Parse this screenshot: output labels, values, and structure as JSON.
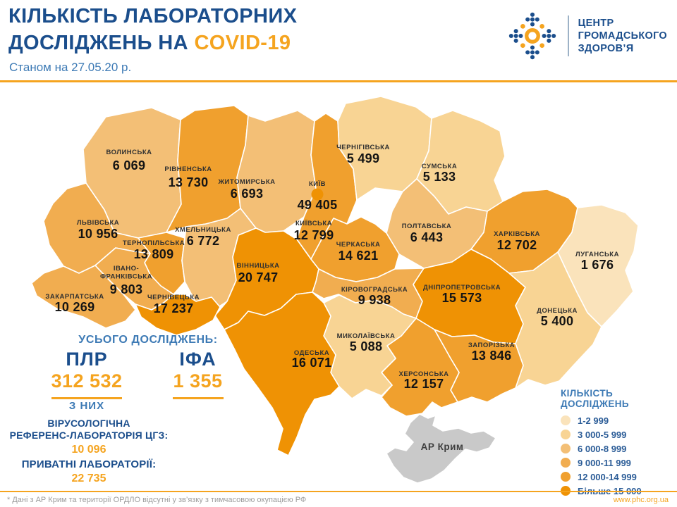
{
  "header": {
    "title_line1": "КІЛЬКІСТЬ ЛАБОРАТОРНИХ",
    "title_line2_prefix": "ДОСЛІДЖЕНЬ НА ",
    "title_highlight": "COVID-19",
    "subtitle": "Станом на 27.05.20 р.",
    "logo_lines": [
      "ЦЕНТР",
      "ГРОМАДСЬКОГО",
      "ЗДОРОВ’Я"
    ]
  },
  "totals": {
    "heading": "УСЬОГО ДОСЛІДЖЕНЬ:",
    "pcr_label": "ПЛР",
    "pcr_value": "312 532",
    "elisa_label": "ІФА",
    "elisa_value": "1 355",
    "of_them": "З НИХ",
    "ref_lab_line1": "ВІРУСОЛОГІЧНА",
    "ref_lab_line2": "РЕФЕРЕНС-ЛАБОРАТОРІЯ ЦГЗ:",
    "ref_lab_value": "10 096",
    "private_labs_label": "ПРИВАТНІ ЛАБОРАТОРІЇ:",
    "private_labs_value": "22 735"
  },
  "legend": {
    "title": "КІЛЬКІСТЬ ДОСЛІДЖЕНЬ",
    "items": [
      {
        "label": "1-2 999",
        "color": "#fae3bb"
      },
      {
        "label": "3 000-5 999",
        "color": "#f8d494"
      },
      {
        "label": "6 000-8 999",
        "color": "#f3bf76"
      },
      {
        "label": "9 000-11 999",
        "color": "#f1ad50"
      },
      {
        "label": "12 000-14 999",
        "color": "#f0a02e"
      },
      {
        "label": "Більше 15 000",
        "color": "#ef9204"
      }
    ]
  },
  "map": {
    "regions": [
      {
        "id": "volynska",
        "name": "ВОЛИНСЬКА",
        "value": "6 069",
        "bucket": 3
      },
      {
        "id": "rivnenska",
        "name": "РІВНЕНСЬКА",
        "value": "13 730",
        "bucket": 5
      },
      {
        "id": "zhytomyrska",
        "name": "ЖИТОМИРСЬКА",
        "value": "6 693",
        "bucket": 3
      },
      {
        "id": "kyiv-city",
        "name": "КИЇВ",
        "value": "49 405",
        "bucket": 6
      },
      {
        "id": "kyivska",
        "name": "КИЇВСЬКА",
        "value": "12 799",
        "bucket": 5
      },
      {
        "id": "chernihivska",
        "name": "ЧЕРНІГІВСЬКА",
        "value": "5 499",
        "bucket": 2
      },
      {
        "id": "sumska",
        "name": "СУМСЬКА",
        "value": "5 133",
        "bucket": 2
      },
      {
        "id": "poltavska",
        "name": "ПОЛТАВСЬКА",
        "value": "6 443",
        "bucket": 3
      },
      {
        "id": "kharkivska",
        "name": "ХАРКІВСЬКА",
        "value": "12 702",
        "bucket": 5
      },
      {
        "id": "luhanska",
        "name": "ЛУГАНСЬКА",
        "value": "1 676",
        "bucket": 1
      },
      {
        "id": "lvivska",
        "name": "ЛЬВІВСЬКА",
        "value": "10 956",
        "bucket": 4
      },
      {
        "id": "ternopilska",
        "name": "ТЕРНОПІЛЬСЬКА",
        "value": "13 809",
        "bucket": 5
      },
      {
        "id": "khmelnytska",
        "name": "ХМЕЛЬНИЦЬКА",
        "value": "6 772",
        "bucket": 3
      },
      {
        "id": "vinnytska",
        "name": "ВІННИЦЬКА",
        "value": "20 747",
        "bucket": 6
      },
      {
        "id": "cherkaska",
        "name": "ЧЕРКАСЬКА",
        "value": "14 621",
        "bucket": 5
      },
      {
        "id": "kirovohradska",
        "name": "КІРОВОГРАДСЬКА",
        "value": "9 938",
        "bucket": 4
      },
      {
        "id": "dnipropetrovska",
        "name": "ДНІПРОПЕТРОВСЬКА",
        "value": "15 573",
        "bucket": 6
      },
      {
        "id": "donetska",
        "name": "ДОНЕЦЬКА",
        "value": "5 400",
        "bucket": 2
      },
      {
        "id": "zaporizka",
        "name": "ЗАПОРІЗЬКА",
        "value": "13 846",
        "bucket": 5
      },
      {
        "id": "khersonska",
        "name": "ХЕРСОНСЬКА",
        "value": "12 157",
        "bucket": 5
      },
      {
        "id": "mykolaivska",
        "name": "МИКОЛАЇВСЬКА",
        "value": "5 088",
        "bucket": 2
      },
      {
        "id": "odeska",
        "name": "ОДЕСЬКА",
        "value": "16 071",
        "bucket": 6
      },
      {
        "id": "ivano-frankivska",
        "name": "ІВАНО-ФРАНКІВСЬКА",
        "value": "9 803",
        "bucket": 4
      },
      {
        "id": "zakarpatska",
        "name": "ЗАКАРПАТСЬКА",
        "value": "10 269",
        "bucket": 4
      },
      {
        "id": "chernivetska",
        "name": "ЧЕРНІВЕЦЬКА",
        "value": "17 237",
        "bucket": 6
      }
    ],
    "crimea": {
      "name": "АР Крим",
      "color": "#c9c9c9"
    }
  },
  "footer": {
    "note": "* Дані з АР Крим та території ОРДЛО відсутні у зв’язку з тимчасовою окупацією РФ",
    "website": "www.phc.org.ua"
  },
  "colors": {
    "navy": "#1b4e8c",
    "medium_blue": "#3d7ab5",
    "accent_orange": "#f5a41f",
    "crimea_grey": "#c9c9c9"
  }
}
